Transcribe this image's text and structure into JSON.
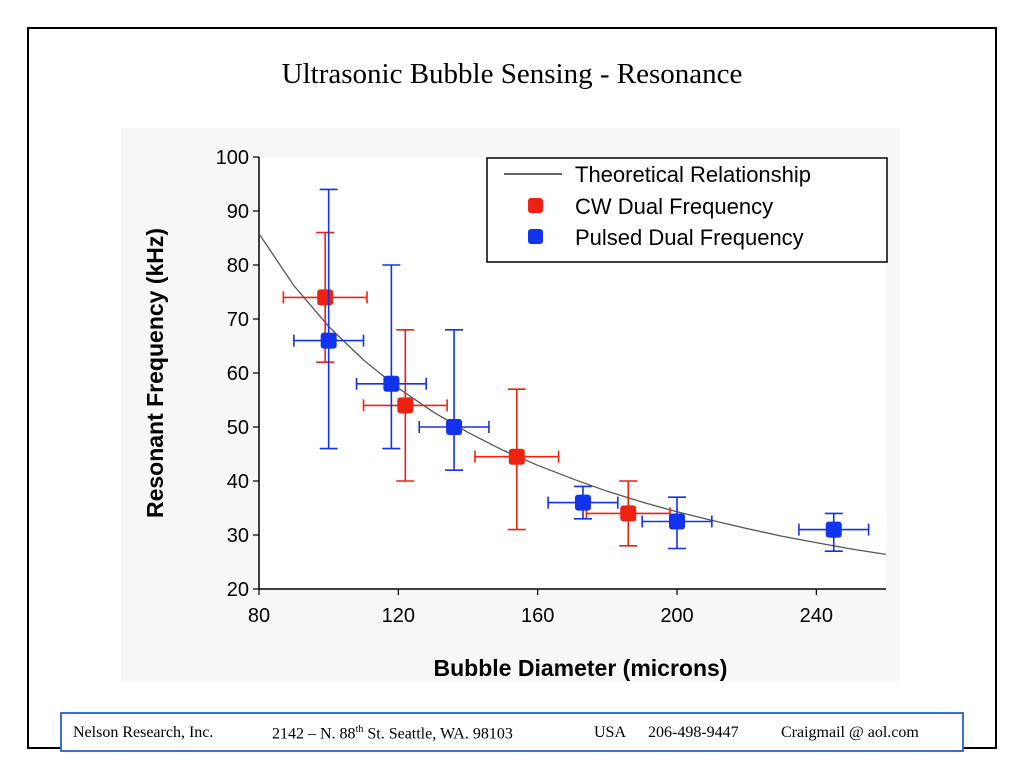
{
  "slide": {
    "title": "Ultrasonic Bubble Sensing - Resonance",
    "footer": {
      "company": "Nelson Research, Inc.",
      "street_number": "2142 –  N. 88",
      "street_sup": "th",
      "street_rest": " St. Seattle, WA. 98103",
      "country": "USA",
      "phone": "206-498-9447",
      "email": "Craigmail @ aol.com"
    }
  },
  "chart_data": {
    "type": "scatter",
    "title": "",
    "xlabel": "Bubble Diameter (microns)",
    "ylabel": "Resonant Frequency (kHz)",
    "xlim": [
      80,
      260
    ],
    "ylim": [
      20,
      100
    ],
    "xticks": [
      80,
      120,
      160,
      200,
      240
    ],
    "yticks": [
      20,
      30,
      40,
      50,
      60,
      70,
      80,
      90,
      100
    ],
    "grid": false,
    "legend_position": "top-right",
    "colors": {
      "cw": "#ee2211",
      "pulsed": "#1133ee",
      "curve": "#555555"
    },
    "curve": {
      "name": "Theoretical Relationship",
      "x": [
        80,
        90,
        100,
        110,
        120,
        130,
        140,
        150,
        160,
        170,
        180,
        190,
        200,
        210,
        220,
        230,
        240,
        250,
        260
      ],
      "y": [
        85.8,
        76.2,
        68.6,
        62.4,
        57.2,
        52.8,
        49.0,
        45.7,
        42.9,
        40.4,
        38.1,
        36.1,
        34.3,
        32.7,
        31.2,
        29.8,
        28.6,
        27.4,
        26.4
      ]
    },
    "series": [
      {
        "name": "CW Dual Frequency",
        "points": [
          {
            "x": 99,
            "y": 74,
            "xerr": [
              87,
              111
            ],
            "yerr": [
              62,
              86
            ]
          },
          {
            "x": 122,
            "y": 54,
            "xerr": [
              110,
              134
            ],
            "yerr": [
              40,
              68
            ]
          },
          {
            "x": 154,
            "y": 44.5,
            "xerr": [
              142,
              166
            ],
            "yerr": [
              31,
              57
            ]
          },
          {
            "x": 186,
            "y": 34,
            "xerr": [
              174,
              198
            ],
            "yerr": [
              28,
              40
            ]
          }
        ]
      },
      {
        "name": "Pulsed Dual Frequency",
        "points": [
          {
            "x": 100,
            "y": 66,
            "xerr": [
              90,
              110
            ],
            "yerr": [
              46,
              94
            ]
          },
          {
            "x": 118,
            "y": 58,
            "xerr": [
              108,
              128
            ],
            "yerr": [
              46,
              80
            ]
          },
          {
            "x": 136,
            "y": 50,
            "xerr": [
              126,
              146
            ],
            "yerr": [
              42,
              68
            ]
          },
          {
            "x": 173,
            "y": 36,
            "xerr": [
              163,
              183
            ],
            "yerr": [
              33,
              39
            ]
          },
          {
            "x": 200,
            "y": 32.5,
            "xerr": [
              190,
              210
            ],
            "yerr": [
              27.5,
              37
            ]
          },
          {
            "x": 245,
            "y": 31,
            "xerr": [
              235,
              255
            ],
            "yerr": [
              27,
              34
            ]
          }
        ]
      }
    ]
  }
}
